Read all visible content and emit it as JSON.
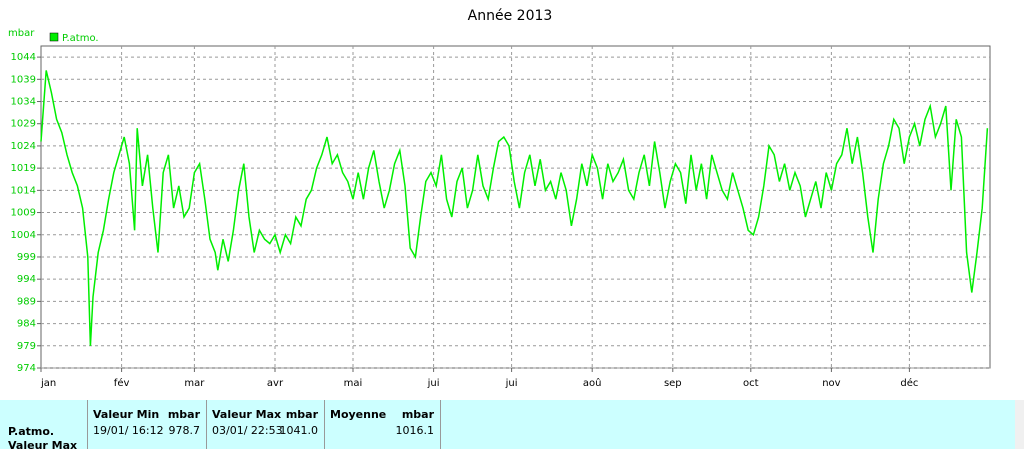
{
  "chart_data": {
    "type": "line",
    "title": "Année 2013",
    "y_label": "mbar",
    "xlim": [
      0,
      365
    ],
    "ylim": [
      974,
      1046.5
    ],
    "xticks": [
      {
        "value": 0,
        "label": "jan"
      },
      {
        "value": 31,
        "label": "fév"
      },
      {
        "value": 59,
        "label": "mar"
      },
      {
        "value": 90,
        "label": "avr"
      },
      {
        "value": 120,
        "label": "mai"
      },
      {
        "value": 151,
        "label": "jui"
      },
      {
        "value": 181,
        "label": "jui"
      },
      {
        "value": 212,
        "label": "aoû"
      },
      {
        "value": 243,
        "label": "sep"
      },
      {
        "value": 273,
        "label": "oct"
      },
      {
        "value": 304,
        "label": "nov"
      },
      {
        "value": 334,
        "label": "déc"
      }
    ],
    "yticks": [
      974,
      979,
      984,
      989,
      994,
      999,
      1004,
      1009,
      1014,
      1019,
      1024,
      1029,
      1034,
      1039,
      1044
    ],
    "grid": true,
    "legend": "top-left",
    "x": [
      0,
      2,
      4,
      6,
      8,
      10,
      12,
      14,
      16,
      18,
      19,
      20,
      22,
      24,
      26,
      28,
      30,
      32,
      34,
      36,
      37,
      39,
      41,
      43,
      45,
      47,
      49,
      51,
      53,
      55,
      57,
      59,
      61,
      63,
      65,
      67,
      68,
      70,
      72,
      74,
      76,
      78,
      80,
      82,
      84,
      86,
      88,
      90,
      92,
      94,
      96,
      98,
      100,
      102,
      104,
      106,
      108,
      110,
      112,
      114,
      116,
      118,
      120,
      122,
      124,
      126,
      128,
      130,
      132,
      134,
      136,
      138,
      140,
      142,
      144,
      146,
      148,
      150,
      152,
      154,
      156,
      158,
      160,
      162,
      164,
      166,
      168,
      170,
      172,
      174,
      176,
      178,
      180,
      182,
      184,
      186,
      188,
      190,
      192,
      194,
      196,
      198,
      200,
      202,
      204,
      206,
      208,
      210,
      212,
      214,
      216,
      218,
      220,
      222,
      224,
      226,
      228,
      230,
      232,
      234,
      236,
      238,
      240,
      242,
      244,
      246,
      248,
      250,
      252,
      254,
      256,
      258,
      260,
      262,
      264,
      266,
      268,
      270,
      272,
      274,
      276,
      278,
      280,
      282,
      284,
      286,
      288,
      290,
      292,
      294,
      296,
      298,
      300,
      302,
      304,
      306,
      308,
      310,
      312,
      314,
      316,
      318,
      320,
      322,
      324,
      326,
      328,
      330,
      332,
      334,
      336,
      338,
      340,
      342,
      344,
      346,
      348,
      350,
      352,
      354,
      356,
      358,
      360,
      362,
      364
    ],
    "series": [
      {
        "name": "P.atmo.",
        "color": "#00ee00",
        "values": [
          1025,
          1041,
          1036,
          1030,
          1027,
          1022,
          1018,
          1015,
          1010,
          999,
          979,
          990,
          1000,
          1005,
          1012,
          1018,
          1022,
          1026,
          1020,
          1005,
          1028,
          1015,
          1022,
          1010,
          1000,
          1018,
          1022,
          1010,
          1015,
          1008,
          1010,
          1018,
          1020,
          1012,
          1003,
          1000,
          996,
          1003,
          998,
          1005,
          1014,
          1020,
          1008,
          1000,
          1005,
          1003,
          1002,
          1004,
          1000,
          1004,
          1002,
          1008,
          1006,
          1012,
          1014,
          1019,
          1022,
          1026,
          1020,
          1022,
          1018,
          1016,
          1012,
          1018,
          1012,
          1019,
          1023,
          1016,
          1010,
          1014,
          1020,
          1023,
          1015,
          1001,
          999,
          1008,
          1016,
          1018,
          1015,
          1022,
          1012,
          1008,
          1016,
          1019,
          1010,
          1014,
          1022,
          1015,
          1012,
          1019,
          1025,
          1026,
          1024,
          1016,
          1010,
          1018,
          1022,
          1015,
          1021,
          1014,
          1016,
          1012,
          1018,
          1014,
          1006,
          1012,
          1020,
          1015,
          1022,
          1019,
          1012,
          1020,
          1016,
          1018,
          1021,
          1014,
          1012,
          1018,
          1022,
          1015,
          1025,
          1018,
          1010,
          1016,
          1020,
          1018,
          1011,
          1022,
          1014,
          1020,
          1012,
          1022,
          1018,
          1014,
          1012,
          1018,
          1014,
          1010,
          1005,
          1004,
          1008,
          1015,
          1024,
          1022,
          1016,
          1020,
          1014,
          1018,
          1015,
          1008,
          1012,
          1016,
          1010,
          1018,
          1014,
          1020,
          1022,
          1028,
          1020,
          1026,
          1018,
          1008,
          1000,
          1012,
          1020,
          1024,
          1030,
          1028,
          1020,
          1026,
          1029,
          1024,
          1030,
          1033,
          1026,
          1029,
          1033,
          1014,
          1030,
          1026,
          1000,
          991,
          1000,
          1010,
          1028
        ]
      }
    ]
  },
  "table": {
    "row_label": "P.atmo.",
    "row_label_2": "Valeur Max",
    "columns": [
      {
        "header": "Valeur Min",
        "unit": "mbar",
        "date": "19/01/  16:12",
        "value": "978.7"
      },
      {
        "header": "Valeur Max",
        "unit": "mbar",
        "date": "03/01/  22:53",
        "value": "1041.0"
      },
      {
        "header": "Moyenne",
        "unit": "mbar",
        "value": "1016.1"
      }
    ]
  }
}
